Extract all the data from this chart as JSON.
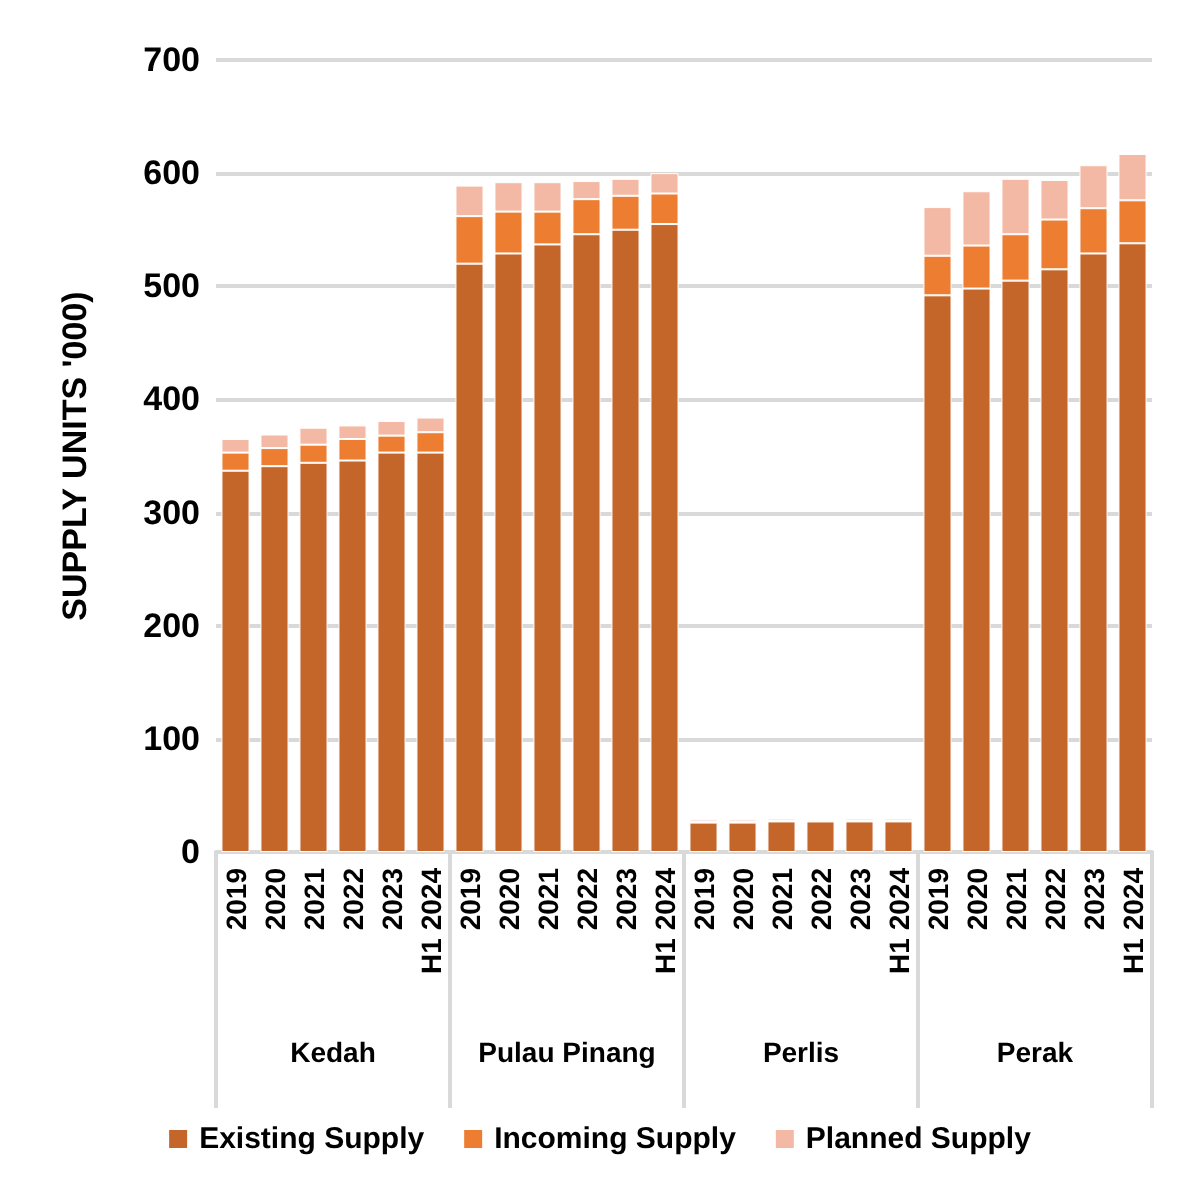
{
  "chart_data": {
    "type": "bar",
    "stacked": true,
    "ylabel": "SUPPLY UNITS '000)",
    "categories": [
      "2019",
      "2020",
      "2021",
      "2022",
      "2023",
      "H1 2024",
      "2019",
      "2020",
      "2021",
      "2022",
      "2023",
      "H1 2024",
      "2019",
      "2020",
      "2021",
      "2022",
      "2023",
      "H1 2024",
      "2019",
      "2020",
      "2021",
      "2022",
      "2023",
      "H1 2024"
    ],
    "annotations": [
      "Kedah",
      "Pulau Pinang",
      "Perlis",
      "Perak"
    ],
    "series": [
      {
        "name": "Existing Supply",
        "color": "#c4662a",
        "values": [
          337,
          341,
          344,
          346,
          353,
          353,
          520,
          529,
          537,
          546,
          550,
          555,
          26,
          26,
          27,
          27,
          27,
          27,
          492,
          498,
          505,
          515,
          529,
          538
        ]
      },
      {
        "name": "Incoming Supply",
        "color": "#ed7d31",
        "values": [
          16,
          16,
          16,
          19,
          15,
          18,
          42,
          37,
          29,
          31,
          30,
          27,
          1,
          1,
          1,
          1,
          1,
          1,
          35,
          38,
          41,
          44,
          40,
          38
        ]
      },
      {
        "name": "Planned Supply",
        "color": "#f4b9a4",
        "values": [
          12,
          12,
          15,
          12,
          13,
          13,
          27,
          26,
          26,
          16,
          15,
          18,
          2,
          2,
          2,
          1,
          2,
          2,
          43,
          48,
          49,
          35,
          38,
          41
        ]
      }
    ],
    "ylim": [
      0,
      700
    ],
    "yticks": [
      0,
      100,
      200,
      300,
      400,
      500,
      600,
      700
    ],
    "grid": "y",
    "legend": "bottom"
  }
}
